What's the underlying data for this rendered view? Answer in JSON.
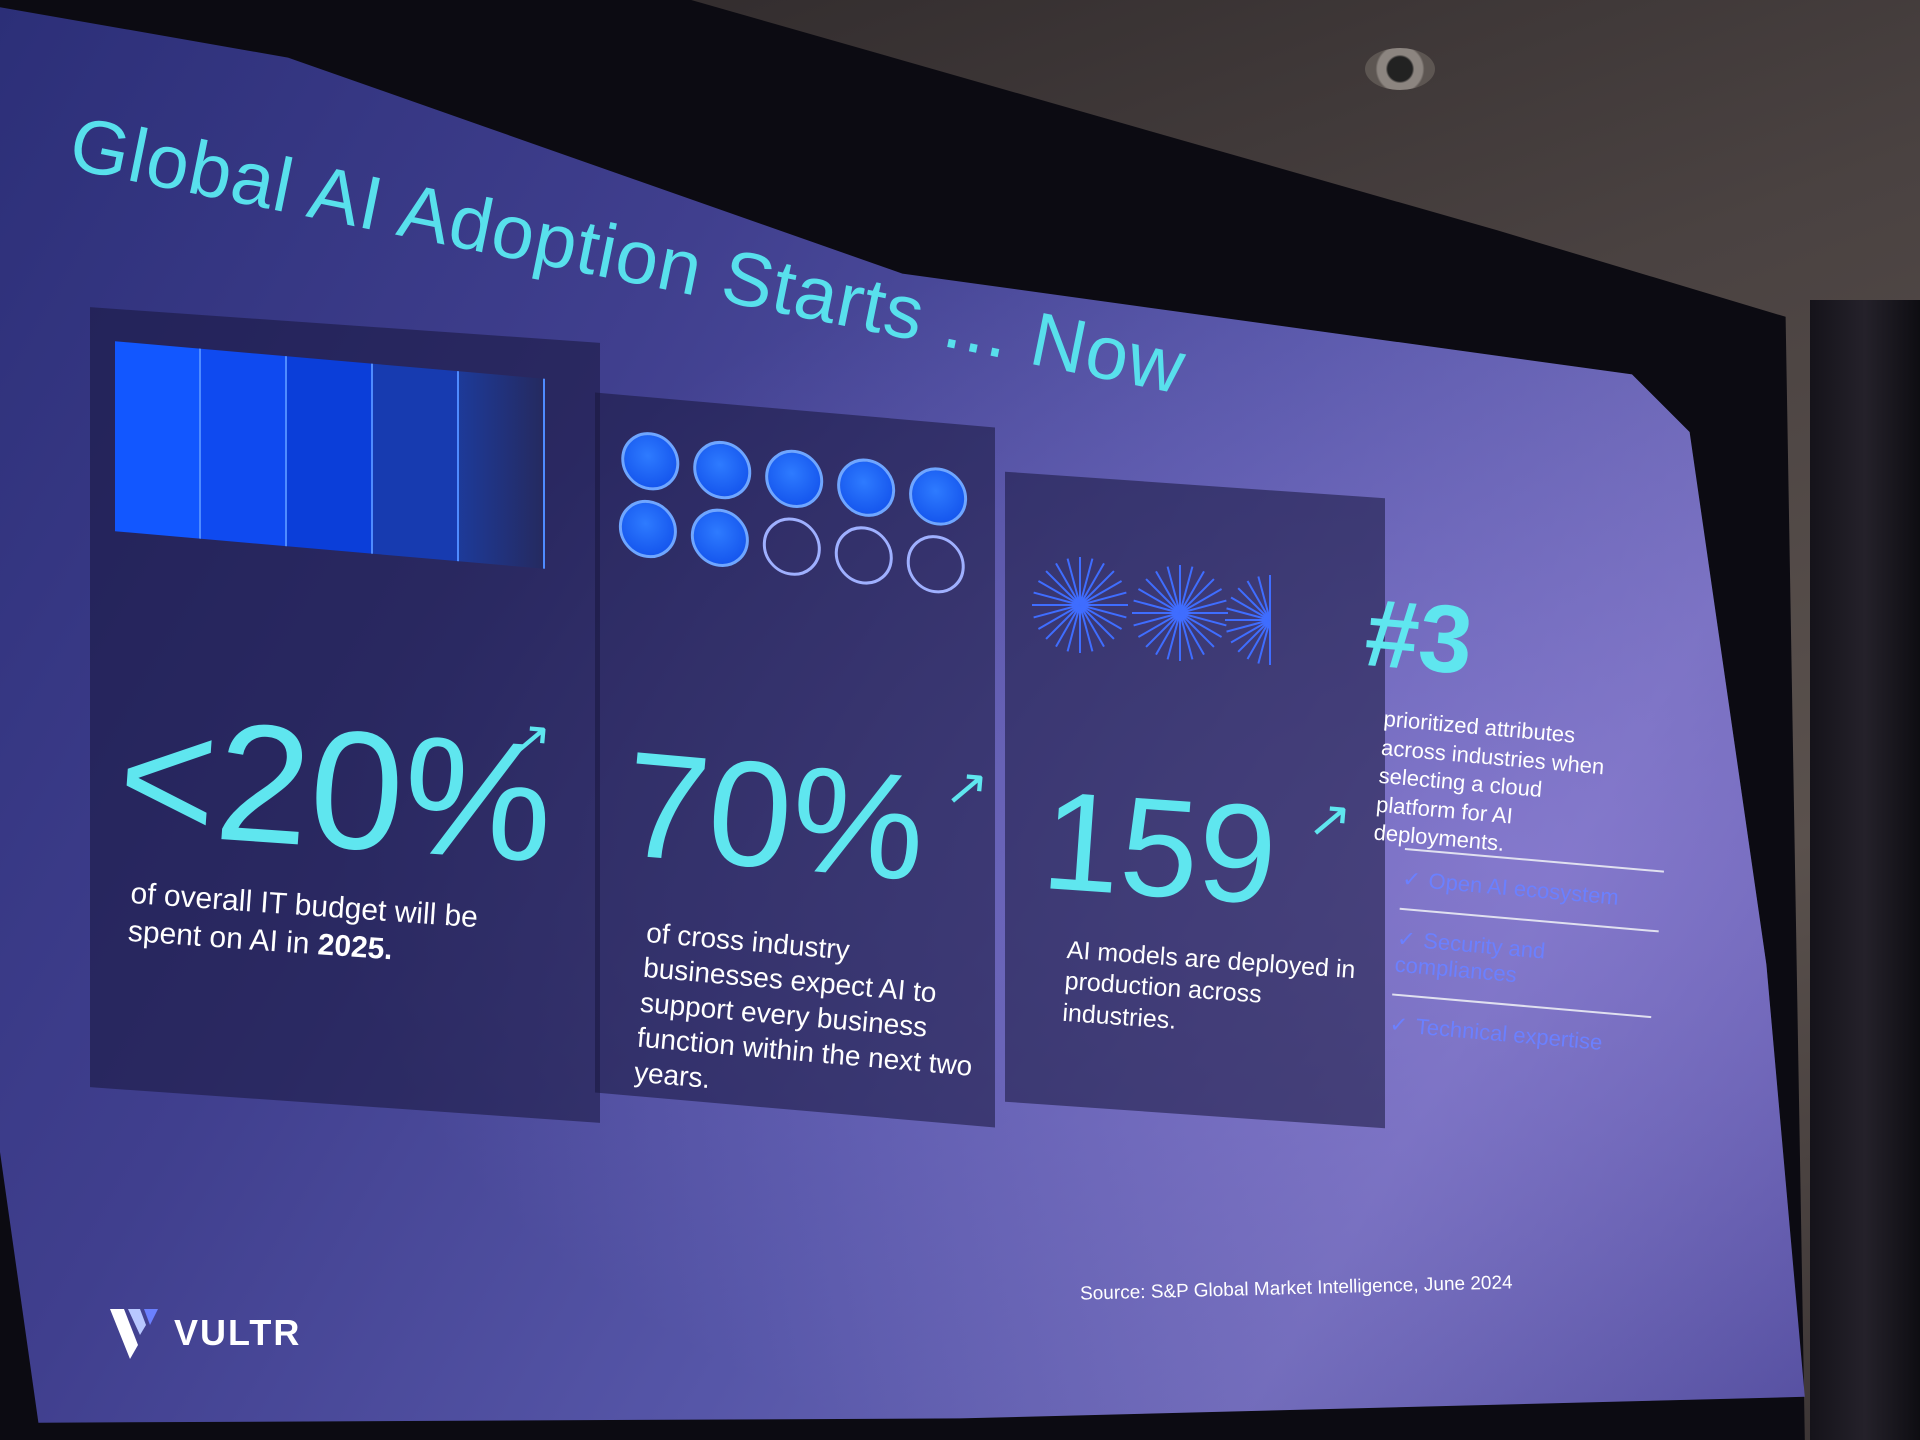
{
  "slide": {
    "title": "Global AI Adoption Starts ... Now",
    "stats": [
      {
        "value": "<20%",
        "caption": "of overall IT budget will be spent on AI in ",
        "caption_bold": "2025."
      },
      {
        "value": "70%",
        "caption": "of cross industry businesses expect AI to support every business function within the next two years."
      },
      {
        "value": "159",
        "caption": "AI models are deployed in production across industries."
      },
      {
        "value": "#3",
        "caption": "prioritized attributes across industries when selecting a cloud platform for AI deployments.",
        "attributes": [
          "Open AI ecosystem",
          "Security and compliances",
          "Technical expertise"
        ]
      }
    ],
    "dots": {
      "filled": 7,
      "total": 10
    },
    "logo_text": "VULTR",
    "source": "Source: S&P Global Market Intelligence, June 2024"
  },
  "colors": {
    "accent": "#5fe6ef",
    "bright_blue": "#1257ff",
    "check_blue": "#6b80ff"
  }
}
